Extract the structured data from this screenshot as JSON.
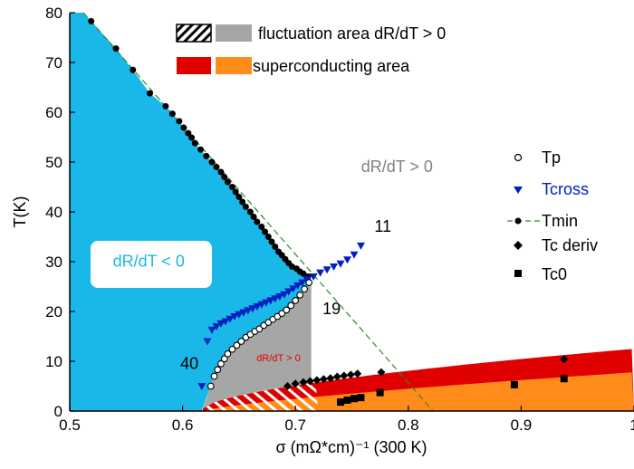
{
  "chart_data": {
    "type": "scatter",
    "xlabel": "σ (mΩ*cm)⁻¹ (300 K)",
    "ylabel": "T(K)",
    "xlim": [
      0.5,
      1.0
    ],
    "ylim": [
      0,
      80
    ],
    "xticks": [
      "0.5",
      "0.6",
      "0.7",
      "0.8",
      "0.9",
      "1"
    ],
    "yticks": [
      "0",
      "10",
      "20",
      "30",
      "40",
      "50",
      "60",
      "70",
      "80"
    ],
    "grid": false,
    "legend_position": "right",
    "top_legend": [
      {
        "label": "fluctuation area  dR/dT > 0",
        "swatches": [
          "hatched",
          "#a6a6a6"
        ]
      },
      {
        "label": "superconducting area",
        "swatches": [
          "#e00000",
          "#ff8c1a"
        ]
      }
    ],
    "region_labels": [
      {
        "text": "dR/dT > 0",
        "x": 0.79,
        "y": 48,
        "color": "#808080"
      },
      {
        "text": "dR/dT < 0",
        "x": 0.57,
        "y": 29,
        "color": "#1ab8e8"
      },
      {
        "text": "dR/dT > 0",
        "x": 0.685,
        "y": 10,
        "color": "#e00000"
      }
    ],
    "annotations": [
      {
        "text": "11",
        "x": 0.77,
        "y": 36
      },
      {
        "text": "19",
        "x": 0.724,
        "y": 19.5
      },
      {
        "text": "40",
        "x": 0.598,
        "y": 8.5
      }
    ],
    "colors": {
      "negative_region": "#1ab8e8",
      "fluctuation_region": "#a6a6a6",
      "superconducting_upper": "#e00000",
      "superconducting_lower": "#ff8c1a",
      "trend_line": "#2b8a2b",
      "tcross": "#0020c0"
    },
    "series": [
      {
        "name": "Tp",
        "marker": "open-circle",
        "x": [
          0.625,
          0.628,
          0.631,
          0.634,
          0.637,
          0.64,
          0.644,
          0.648,
          0.652,
          0.656,
          0.66,
          0.664,
          0.668,
          0.672,
          0.676,
          0.68,
          0.684,
          0.688,
          0.692,
          0.696,
          0.7,
          0.704,
          0.708,
          0.712
        ],
        "y": [
          5.0,
          7.0,
          8.3,
          9.5,
          10.5,
          11.5,
          12.4,
          13.2,
          14.0,
          14.8,
          15.4,
          16.0,
          16.5,
          17.2,
          17.8,
          18.4,
          19.0,
          19.6,
          20.3,
          21.2,
          22.2,
          23.3,
          24.5,
          25.8
        ]
      },
      {
        "name": "Tcross",
        "marker": "down-triangle",
        "x": [
          0.617,
          0.622,
          0.626,
          0.63,
          0.634,
          0.638,
          0.642,
          0.646,
          0.65,
          0.654,
          0.658,
          0.662,
          0.666,
          0.67,
          0.674,
          0.678,
          0.682,
          0.686,
          0.69,
          0.694,
          0.698,
          0.702,
          0.706,
          0.71,
          0.716,
          0.722,
          0.728,
          0.734,
          0.74,
          0.746,
          0.752,
          0.758
        ],
        "y": [
          5.0,
          14.0,
          16.3,
          17.0,
          17.6,
          18.0,
          18.5,
          19.0,
          19.4,
          19.8,
          20.2,
          20.6,
          21.0,
          21.4,
          21.8,
          22.2,
          22.6,
          23.0,
          23.4,
          24.0,
          24.6,
          25.2,
          25.8,
          26.4,
          27.0,
          27.8,
          28.4,
          29.0,
          29.6,
          30.4,
          31.4,
          33.2
        ]
      },
      {
        "name": "Tmin",
        "marker": "filled-circle",
        "x": [
          0.519,
          0.541,
          0.556,
          0.571,
          0.585,
          0.591,
          0.597,
          0.601,
          0.605,
          0.608,
          0.611,
          0.616,
          0.621,
          0.626,
          0.63,
          0.634,
          0.637,
          0.64,
          0.644,
          0.647,
          0.65,
          0.653,
          0.656,
          0.66,
          0.663,
          0.666,
          0.67,
          0.673,
          0.676,
          0.679,
          0.682,
          0.685,
          0.688,
          0.691,
          0.694,
          0.697,
          0.701,
          0.704,
          0.707,
          0.711
        ],
        "y": [
          78.3,
          72.8,
          68.5,
          63.8,
          61.2,
          59.7,
          58.2,
          56.9,
          55.8,
          54.9,
          53.8,
          52.5,
          51.2,
          50.0,
          49.0,
          48.0,
          47.0,
          46.0,
          45.0,
          44.0,
          43.0,
          42.0,
          41.0,
          40.0,
          39.0,
          38.0,
          37.0,
          36.0,
          35.0,
          34.0,
          33.0,
          32.0,
          31.3,
          30.5,
          29.7,
          29.0,
          28.6,
          28.0,
          27.6,
          27.0
        ]
      },
      {
        "name": "Tc deriv",
        "marker": "diamond",
        "x": [
          0.693,
          0.7,
          0.707,
          0.713,
          0.719,
          0.725,
          0.731,
          0.737,
          0.743,
          0.749,
          0.755,
          0.776,
          0.938
        ],
        "y": [
          5.0,
          5.5,
          5.8,
          6.0,
          6.2,
          6.4,
          6.6,
          6.9,
          7.1,
          7.3,
          7.5,
          7.8,
          10.4
        ]
      },
      {
        "name": "Tc0",
        "marker": "square",
        "x": [
          0.74,
          0.746,
          0.752,
          0.758,
          0.775,
          0.894,
          0.938
        ],
        "y": [
          1.8,
          2.2,
          2.5,
          2.7,
          3.7,
          5.3,
          6.5
        ]
      },
      {
        "name": "trend",
        "marker": "dashed-line",
        "x": [
          0.512,
          0.822
        ],
        "y": [
          80,
          0
        ]
      }
    ]
  }
}
